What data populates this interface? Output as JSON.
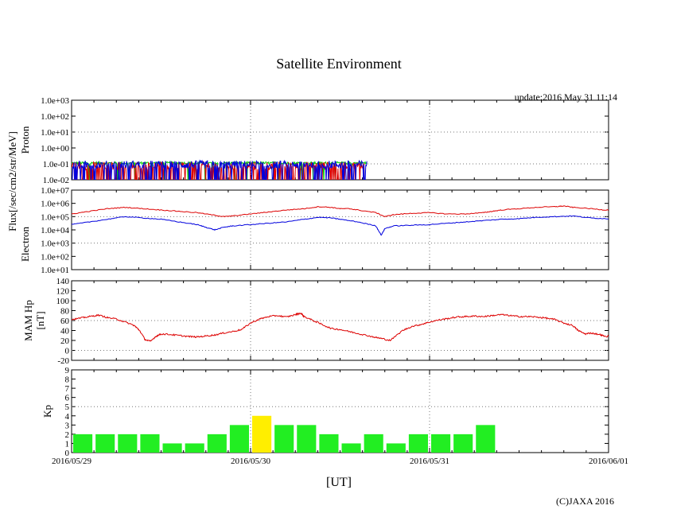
{
  "header": {
    "title": "Satellite Environment",
    "update": "update:2016 May 31 11:14",
    "copyright": "(C)JAXA 2016",
    "x_axis_label": "[UT]"
  },
  "colors": {
    "red": "#dd0000",
    "blue": "#0000dd",
    "green": "#00cc00",
    "kp_normal": "#22ee22",
    "kp_high": "#ffee00"
  },
  "chart_data": [
    {
      "type": "line",
      "name": "proton",
      "ylabel": "Proton",
      "shared_ylabel": "Flux[/sec/cm2/str/MeV]",
      "yscale": "log",
      "ylim": [
        -2,
        3
      ],
      "ytick_labels": [
        "1.0e-02",
        "1.0e-01",
        "1.0e+00",
        "1.0e+01",
        "1.0e+02",
        "1.0e+03"
      ],
      "x_range_days": [
        0,
        3
      ],
      "data_end_day": 1.65,
      "series": [
        {
          "name": "green",
          "color": "green",
          "level_log10": -0.95,
          "noise": 0.08,
          "dip_rate": 0.05
        },
        {
          "name": "red",
          "color": "red",
          "level_log10": -1.12,
          "noise": 0.25,
          "dip_rate": 0.35
        },
        {
          "name": "blue",
          "color": "blue",
          "level_log10": -1.05,
          "noise": 0.25,
          "dip_rate": 0.25
        }
      ]
    },
    {
      "type": "line",
      "name": "electron",
      "ylabel": "Electron",
      "yscale": "log",
      "ylim": [
        1,
        7
      ],
      "ytick_labels": [
        "1.0e+01",
        "1.0e+02",
        "1.0e+03",
        "1.0e+04",
        "1.0e+05",
        "1.0e+06",
        "1.0e+07"
      ],
      "x_range_days": [
        0,
        3
      ],
      "series": [
        {
          "name": "high",
          "color": "red",
          "x": [
            0,
            0.1,
            0.2,
            0.3,
            0.4,
            0.5,
            0.6,
            0.7,
            0.8,
            0.85,
            0.9,
            1.0,
            1.1,
            1.2,
            1.3,
            1.38,
            1.45,
            1.5,
            1.55,
            1.6,
            1.7,
            1.75,
            1.8,
            1.9,
            2.0,
            2.1,
            2.2,
            2.3,
            2.35,
            2.4,
            2.5,
            2.6,
            2.7,
            2.75,
            2.8,
            2.9,
            2.98,
            3.03
          ],
          "y": [
            5.2,
            5.4,
            5.6,
            5.7,
            5.6,
            5.5,
            5.4,
            5.3,
            5.1,
            5.0,
            5.05,
            5.2,
            5.35,
            5.5,
            5.6,
            5.75,
            5.7,
            5.6,
            5.6,
            5.5,
            5.3,
            5.0,
            5.15,
            5.25,
            5.3,
            5.2,
            5.2,
            5.3,
            5.4,
            5.5,
            5.6,
            5.7,
            5.75,
            5.8,
            5.7,
            5.6,
            5.5,
            5.55
          ]
        },
        {
          "name": "low",
          "color": "blue",
          "x": [
            0,
            0.1,
            0.2,
            0.3,
            0.4,
            0.5,
            0.6,
            0.7,
            0.75,
            0.8,
            0.85,
            0.9,
            1.0,
            1.1,
            1.2,
            1.3,
            1.38,
            1.45,
            1.5,
            1.6,
            1.7,
            1.73,
            1.75,
            1.8,
            1.9,
            2.0,
            2.1,
            2.2,
            2.3,
            2.4,
            2.5,
            2.6,
            2.7,
            2.8,
            2.9,
            2.98,
            3.03
          ],
          "y": [
            4.4,
            4.6,
            4.8,
            5.0,
            4.9,
            4.8,
            4.6,
            4.4,
            4.2,
            4.0,
            4.2,
            4.3,
            4.4,
            4.5,
            4.6,
            4.8,
            4.95,
            4.9,
            4.8,
            4.6,
            4.3,
            3.6,
            4.1,
            4.3,
            4.35,
            4.4,
            4.5,
            4.6,
            4.7,
            4.8,
            4.85,
            4.95,
            5.0,
            5.05,
            4.9,
            4.85,
            4.8
          ]
        }
      ]
    },
    {
      "type": "line",
      "name": "mam_hp",
      "ylabel": "MAM Hp [nT]",
      "ylabel_lines": [
        "MAM Hp",
        "[nT]"
      ],
      "ylim": [
        -20,
        140
      ],
      "ytick_labels": [
        "-20",
        "0",
        "20",
        "40",
        "60",
        "80",
        "100",
        "120",
        "140"
      ],
      "x_range_days": [
        0,
        3
      ],
      "series": [
        {
          "name": "hp",
          "color": "red",
          "x": [
            0,
            0.05,
            0.1,
            0.15,
            0.2,
            0.25,
            0.3,
            0.35,
            0.38,
            0.41,
            0.44,
            0.47,
            0.5,
            0.55,
            0.6,
            0.65,
            0.7,
            0.75,
            0.8,
            0.85,
            0.9,
            0.95,
            1.0,
            1.05,
            1.1,
            1.15,
            1.2,
            1.25,
            1.28,
            1.3,
            1.35,
            1.4,
            1.45,
            1.5,
            1.55,
            1.6,
            1.65,
            1.7,
            1.73,
            1.78,
            1.85,
            1.9,
            1.95,
            2.0,
            2.05,
            2.1,
            2.15,
            2.2,
            2.25,
            2.3,
            2.35,
            2.4,
            2.45,
            2.5,
            2.55,
            2.6,
            2.65,
            2.7,
            2.75,
            2.8,
            2.83,
            2.87,
            2.9,
            2.95,
            2.98,
            3.03
          ],
          "y": [
            62,
            65,
            68,
            71,
            66,
            63,
            57,
            50,
            40,
            22,
            18,
            28,
            33,
            32,
            30,
            28,
            27,
            29,
            31,
            35,
            38,
            42,
            55,
            63,
            68,
            70,
            67,
            72,
            75,
            68,
            60,
            52,
            44,
            42,
            38,
            34,
            30,
            26,
            24,
            20,
            40,
            48,
            52,
            57,
            61,
            64,
            67,
            68,
            69,
            68,
            70,
            72,
            70,
            68,
            68,
            67,
            65,
            62,
            55,
            50,
            40,
            33,
            35,
            32,
            28,
            30
          ]
        }
      ]
    },
    {
      "type": "bar",
      "name": "kp",
      "ylabel": "Kp",
      "ylim": [
        0,
        9
      ],
      "ytick_labels": [
        "0",
        "1",
        "2",
        "3",
        "4",
        "5",
        "6",
        "7",
        "8",
        "9"
      ],
      "x_range_days": [
        0,
        3
      ],
      "bar_width_days": 0.125,
      "values": [
        2,
        2,
        2,
        2,
        1,
        1,
        2,
        3,
        4,
        3,
        3,
        2,
        1,
        2,
        1,
        2,
        2,
        2,
        3
      ],
      "highlight_threshold": 4,
      "xtick_labels": [
        "2016/05/29",
        "2016/05/30",
        "2016/05/31",
        "2016/06/01"
      ]
    }
  ]
}
